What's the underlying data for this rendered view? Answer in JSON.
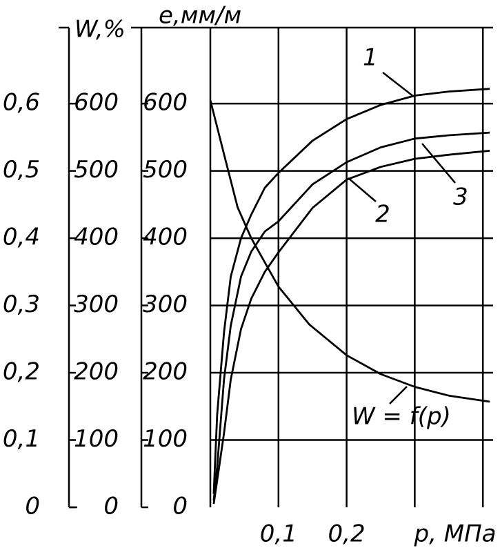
{
  "chart_data": {
    "type": "line",
    "ylabel": "e,мм/м",
    "xlabel": "p, МПа",
    "xlim": [
      0,
      0.415
    ],
    "xticks": [
      {
        "value": 0.1,
        "label": "0,1"
      },
      {
        "value": 0.2,
        "label": "0,2"
      }
    ],
    "xgrid": [
      0.1,
      0.2,
      0.3,
      0.4
    ],
    "ylim": [
      0,
      713
    ],
    "yticks": [
      0,
      100,
      200,
      300,
      400,
      500,
      600
    ],
    "grid": true,
    "extra_axes": [
      {
        "ylim": [
          0,
          0.713
        ],
        "yticks": [
          0,
          {
            "value": 0.1,
            "label": "0,1"
          },
          {
            "value": 0.2,
            "label": "0,2"
          },
          {
            "value": 0.3,
            "label": "0,3"
          },
          {
            "value": 0.4,
            "label": "0,4"
          },
          {
            "value": 0.5,
            "label": "0,5"
          },
          {
            "value": 0.6,
            "label": "0,6"
          }
        ]
      },
      {
        "label": "W,%",
        "ylim": [
          0,
          713
        ],
        "yticks": [
          0,
          100,
          200,
          300,
          400,
          500,
          600
        ]
      }
    ],
    "series": [
      {
        "name": "1",
        "color": "#000000",
        "x": [
          0.005,
          0.01,
          0.02,
          0.03,
          0.045,
          0.06,
          0.08,
          0.1,
          0.15,
          0.2,
          0.25,
          0.3,
          0.35,
          0.41
        ],
        "values": [
          20,
          138,
          260,
          343,
          400,
          435,
          475,
          497,
          545,
          577,
          598,
          612,
          618,
          622
        ]
      },
      {
        "name": "2",
        "color": "#000000",
        "x": [
          0.005,
          0.01,
          0.02,
          0.03,
          0.045,
          0.06,
          0.08,
          0.1,
          0.15,
          0.2,
          0.25,
          0.3,
          0.35,
          0.41
        ],
        "values": [
          5,
          40,
          110,
          190,
          265,
          310,
          350,
          379,
          445,
          487,
          506,
          518,
          524,
          530
        ]
      },
      {
        "name": "3",
        "color": "#000000",
        "x": [
          0.005,
          0.01,
          0.02,
          0.03,
          0.045,
          0.06,
          0.08,
          0.1,
          0.15,
          0.2,
          0.25,
          0.3,
          0.35,
          0.41
        ],
        "values": [
          10,
          60,
          190,
          270,
          343,
          380,
          410,
          425,
          480,
          513,
          535,
          548,
          553,
          557
        ]
      },
      {
        "name": "W = f(p)",
        "color": "#000000",
        "x": [
          0,
          0.02,
          0.04,
          0.06,
          0.08,
          0.1,
          0.145,
          0.2,
          0.25,
          0.3,
          0.35,
          0.41
        ],
        "values": [
          605,
          525,
          446,
          400,
          364,
          328,
          272,
          226,
          198,
          179,
          166,
          157
        ]
      }
    ]
  }
}
